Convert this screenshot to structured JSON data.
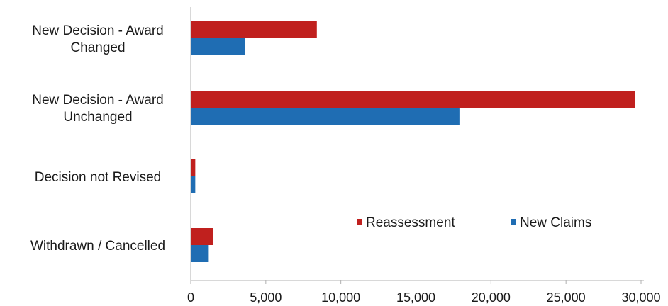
{
  "chart_data": {
    "type": "bar",
    "orientation": "horizontal",
    "categories": [
      "New Decision - Award Changed",
      "New Decision - Award Unchanged",
      "Decision not Revised",
      "Withdrawn / Cancelled"
    ],
    "category_label_lines": [
      [
        "New Decision - Award",
        "Changed"
      ],
      [
        "New Decision - Award",
        "Unchanged"
      ],
      [
        "Decision not Revised"
      ],
      [
        "Withdrawn / Cancelled"
      ]
    ],
    "series": [
      {
        "name": "Reassessment",
        "color": "#c0201e",
        "values": [
          8400,
          29600,
          300,
          1500
        ]
      },
      {
        "name": "New Claims",
        "color": "#1f6db3",
        "values": [
          3600,
          17900,
          300,
          1200
        ]
      }
    ],
    "xlim": [
      0,
      30000
    ],
    "xticks": [
      0,
      5000,
      10000,
      15000,
      20000,
      25000,
      30000
    ],
    "xtick_labels": [
      "0",
      "5,000",
      "10,000",
      "15,000",
      "20,000",
      "25,000",
      "30,000"
    ],
    "title": "",
    "xlabel": "",
    "ylabel": "",
    "grid": false,
    "legend_position": "bottom-right"
  }
}
